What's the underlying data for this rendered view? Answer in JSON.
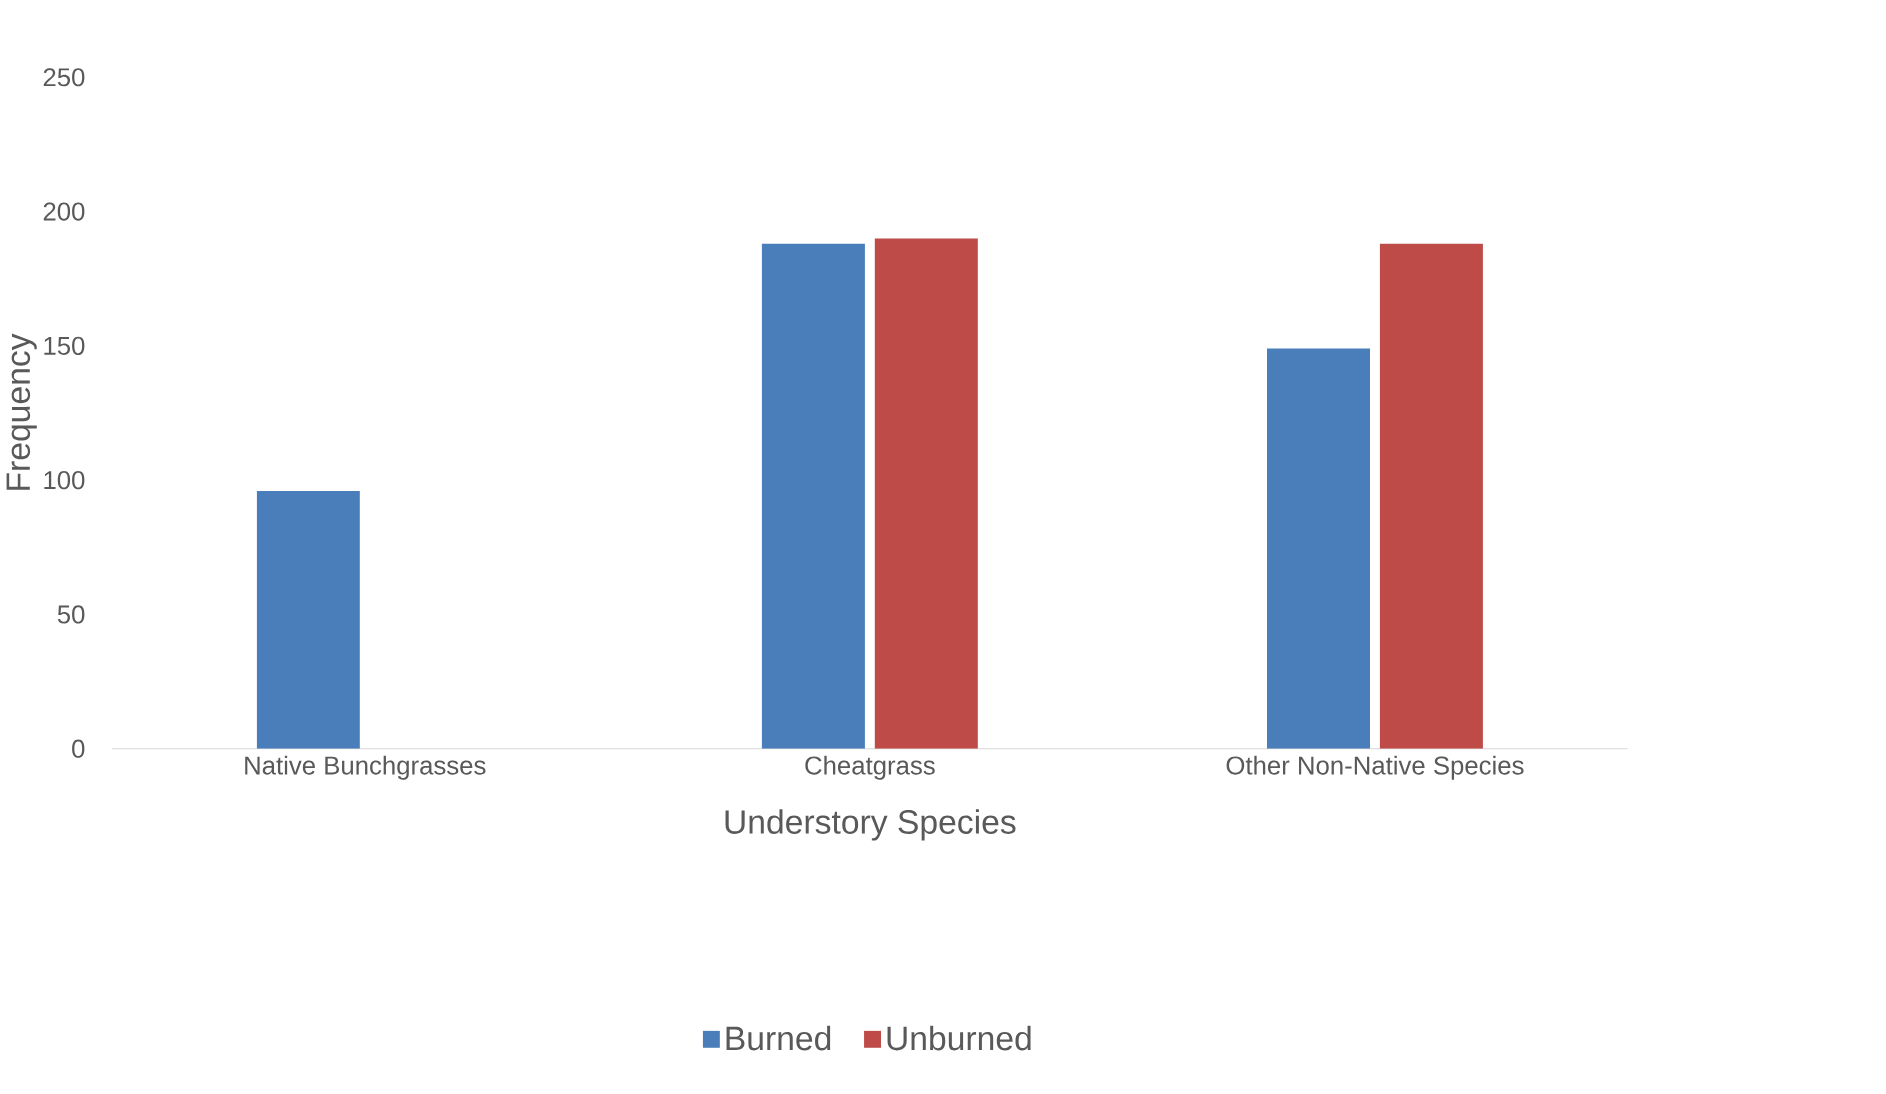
{
  "chart_data": {
    "type": "bar",
    "xlabel": "Understory Species",
    "ylabel": "Frequency",
    "categories": [
      "Native Bunchgrasses",
      "Cheatgrass",
      "Other Non-Native Species"
    ],
    "series": [
      {
        "name": "Burned",
        "color": "#4a7ebb",
        "values": [
          96,
          188,
          149
        ]
      },
      {
        "name": "Unburned",
        "color": "#be4b48",
        "values": [
          0,
          190,
          188
        ]
      }
    ],
    "ylim": [
      0,
      250
    ],
    "yticks": [
      0,
      50,
      100,
      150,
      200,
      250
    ],
    "legend": "bottom"
  }
}
